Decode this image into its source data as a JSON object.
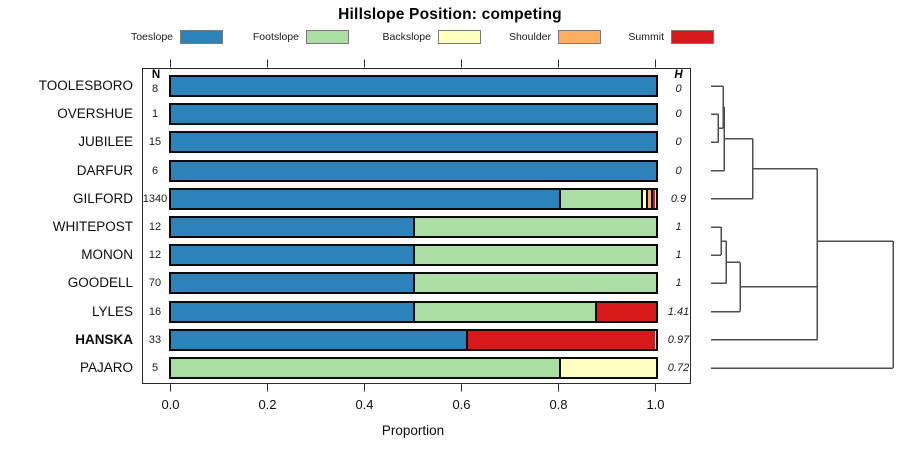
{
  "title": "Hillslope Position: competing",
  "axis": {
    "xlabel": "Proportion",
    "tick_labels": [
      "0.0",
      "0.2",
      "0.4",
      "0.6",
      "0.8",
      "1.0"
    ],
    "n_column_header": "N",
    "h_column_header": "H"
  },
  "legend": {
    "position": "top",
    "items": [
      {
        "label": "Toeslope",
        "color": "#2B83BA"
      },
      {
        "label": "Footslope",
        "color": "#ABDDA4"
      },
      {
        "label": "Backslope",
        "color": "#FFFFBF"
      },
      {
        "label": "Shoulder",
        "color": "#FDAE61"
      },
      {
        "label": "Summit",
        "color": "#D7191C"
      }
    ]
  },
  "chart_data": {
    "type": "bar",
    "variant": "horizontal-stacked-proportion",
    "title": "Hillslope Position: competing",
    "xlabel": "Proportion",
    "xlim": [
      0,
      1
    ],
    "grid": false,
    "legend_position": "top",
    "categories": [
      "Toeslope",
      "Footslope",
      "Backslope",
      "Shoulder",
      "Summit"
    ],
    "series_colors": [
      "#2B83BA",
      "#ABDDA4",
      "#FFFFBF",
      "#FDAE61",
      "#D7191C"
    ],
    "rows": [
      {
        "name": "TOOLESBORO",
        "n": "8",
        "h": "0",
        "emphasis": false,
        "proportions": [
          1,
          0,
          0,
          0,
          0
        ]
      },
      {
        "name": "OVERSHUE",
        "n": "1",
        "h": "0",
        "emphasis": false,
        "proportions": [
          1,
          0,
          0,
          0,
          0
        ]
      },
      {
        "name": "JUBILEE",
        "n": "15",
        "h": "0",
        "emphasis": false,
        "proportions": [
          1,
          0,
          0,
          0,
          0
        ]
      },
      {
        "name": "DARFUR",
        "n": "6",
        "h": "0",
        "emphasis": false,
        "proportions": [
          1,
          0,
          0,
          0,
          0
        ]
      },
      {
        "name": "GILFORD",
        "n": "1340",
        "h": "0.9",
        "emphasis": false,
        "proportions": [
          0.8,
          0.17,
          0.01,
          0.01,
          0.01
        ]
      },
      {
        "name": "WHITEPOST",
        "n": "12",
        "h": "1",
        "emphasis": false,
        "proportions": [
          0.5,
          0.5,
          0,
          0,
          0
        ]
      },
      {
        "name": "MONON",
        "n": "12",
        "h": "1",
        "emphasis": false,
        "proportions": [
          0.5,
          0.5,
          0,
          0,
          0
        ]
      },
      {
        "name": "GOODELL",
        "n": "70",
        "h": "1",
        "emphasis": false,
        "proportions": [
          0.5,
          0.5,
          0,
          0,
          0
        ]
      },
      {
        "name": "LYLES",
        "n": "16",
        "h": "1.41",
        "emphasis": false,
        "proportions": [
          0.5,
          0.375,
          0,
          0,
          0.125
        ]
      },
      {
        "name": "HANSKA",
        "n": "33",
        "h": "0.97",
        "emphasis": true,
        "proportions": [
          0.61,
          0,
          0,
          0,
          0.39
        ]
      },
      {
        "name": "PAJARO",
        "n": "5",
        "h": "0.72",
        "emphasis": false,
        "proportions": [
          0,
          0.8,
          0.2,
          0,
          0
        ]
      }
    ],
    "dendrogram": {
      "structure": "(((((TOOLESBORO,(OVERSHUE,JUBILEE)),DARFUR),GILFORD),((((WHITEPOST,MONON),GOODELL),LYLES),HANSKA)),PAJARO)",
      "merges": [
        {
          "id": "n1",
          "a": "OVERSHUE",
          "b": "JUBILEE",
          "h": 0.04
        },
        {
          "id": "n2",
          "a": "TOOLESBORO",
          "b": "n1",
          "h": 0.066
        },
        {
          "id": "n3",
          "a": "n2",
          "b": "DARFUR",
          "h": 0.074
        },
        {
          "id": "n4",
          "a": "n3",
          "b": "GILFORD",
          "h": 0.23
        },
        {
          "id": "m1",
          "a": "WHITEPOST",
          "b": "MONON",
          "h": 0.055
        },
        {
          "id": "m2",
          "a": "m1",
          "b": "GOODELL",
          "h": 0.085
        },
        {
          "id": "m3",
          "a": "m2",
          "b": "LYLES",
          "h": 0.16
        },
        {
          "id": "m4",
          "a": "m3",
          "b": "HANSKA",
          "h": 0.585
        },
        {
          "id": "c",
          "a": "n4",
          "b": "m4",
          "h": 0.585
        },
        {
          "id": "root",
          "a": "c",
          "b": "PAJARO",
          "h": 1.0
        }
      ]
    }
  }
}
